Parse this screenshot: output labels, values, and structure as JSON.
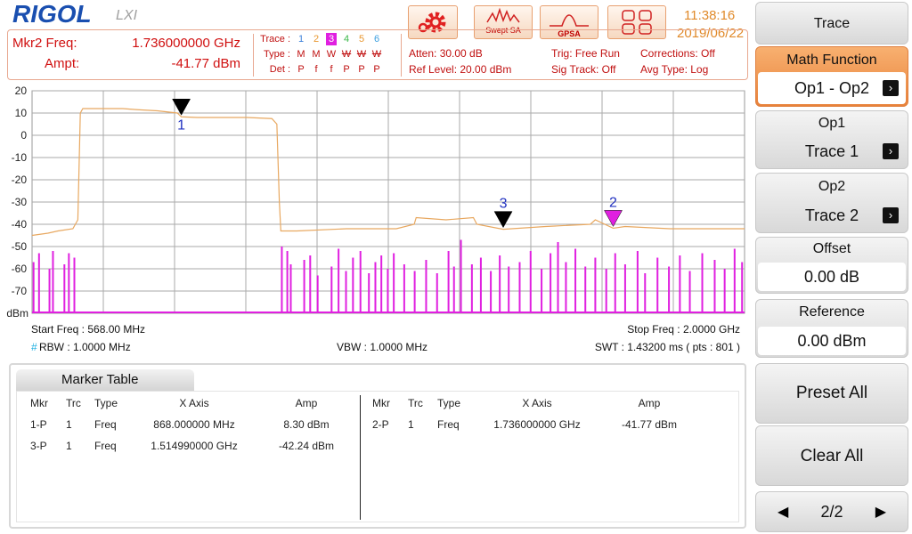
{
  "header": {
    "logo": "RIGOL",
    "lxi": "LXI",
    "buttons": [
      "Swept SA",
      "GPSA"
    ],
    "time": "11:38:16",
    "date": "2019/06/22"
  },
  "readout": {
    "freq_label": "Mkr2 Freq:",
    "freq": "1.736000000 GHz",
    "ampt_label": "Ampt:",
    "ampt": "-41.77 dBm"
  },
  "trace_info": {
    "trace_label": "Trace :",
    "type_label": "Type :",
    "det_label": "Det :",
    "traces": [
      {
        "number": "1",
        "color": "#3b7fd9",
        "type": "M",
        "det": "P",
        "struck": false,
        "active": false
      },
      {
        "number": "2",
        "color": "#e8962e",
        "type": "M",
        "det": "f",
        "struck": false,
        "active": false
      },
      {
        "number": "3",
        "color": "#ffffff",
        "type": "W",
        "det": "f",
        "struck": false,
        "active": true
      },
      {
        "number": "4",
        "color": "#3cb94a",
        "type": "W",
        "det": "P",
        "struck": true,
        "active": false
      },
      {
        "number": "5",
        "color": "#e8962e",
        "type": "W",
        "det": "P",
        "struck": true,
        "active": false
      },
      {
        "number": "6",
        "color": "#3b9fe0",
        "type": "W",
        "det": "P",
        "struck": true,
        "active": false
      }
    ]
  },
  "settings": [
    "Atten: 30.00 dB",
    "Ref Level: 20.00 dBm",
    "Trig: Free Run",
    "Sig Track: Off",
    "Corrections: Off",
    "Avg Type: Log"
  ],
  "chart_data": {
    "type": "line",
    "y_unit": "dBm",
    "xlim": [
      568,
      2000
    ],
    "ylim": [
      -80,
      20
    ],
    "yticks": [
      20,
      10,
      0,
      -10,
      -20,
      -30,
      -40,
      -50,
      -60,
      -70
    ],
    "grid": true,
    "series": [
      {
        "name": "Trace 2",
        "color": "#e8a860",
        "x": [
          568,
          600,
          620,
          650,
          660,
          665,
          670,
          700,
          750,
          780,
          820,
          860,
          868,
          900,
          1000,
          1050,
          1060,
          1065,
          1068,
          1100,
          1200,
          1300,
          1336,
          1340,
          1400,
          1455,
          1462,
          1515,
          1600,
          1690,
          1700,
          1736,
          1760,
          1850,
          2000
        ],
        "values": [
          -45,
          -44,
          -43,
          -42,
          -38,
          10,
          12,
          12,
          12,
          11.5,
          11,
          10,
          8.3,
          8,
          8,
          7.5,
          5,
          -30,
          -43,
          -43,
          -42,
          -42,
          -40,
          -37,
          -38,
          -37,
          -40,
          -42.24,
          -41,
          -40,
          -38,
          -41.77,
          -41,
          -42,
          -42
        ]
      },
      {
        "name": "Trace 3",
        "color": "#e020e0",
        "x": [
          571,
          582,
          603,
          610,
          633,
          642,
          653,
          1070,
          1081,
          1088,
          1115,
          1127,
          1142,
          1170,
          1184,
          1199,
          1213,
          1228,
          1245,
          1258,
          1270,
          1283,
          1295,
          1316,
          1337,
          1360,
          1382,
          1405,
          1416,
          1430,
          1452,
          1470,
          1490,
          1508,
          1526,
          1548,
          1570,
          1592,
          1610,
          1625,
          1641,
          1660,
          1680,
          1700,
          1722,
          1740,
          1760,
          1785,
          1800,
          1825,
          1848,
          1870,
          1890,
          1915,
          1940,
          1960,
          1980,
          1995
        ],
        "values": [
          -57,
          -53,
          -60,
          -52,
          -58,
          -53,
          -55,
          -50,
          -52,
          -58,
          -56,
          -54,
          -63,
          -59,
          -51,
          -61,
          -55,
          -52,
          -62,
          -57,
          -54,
          -60,
          -53,
          -58,
          -61,
          -56,
          -62,
          -52,
          -59,
          -47,
          -58,
          -55,
          -61,
          -54,
          -59,
          -57,
          -52,
          -60,
          -53,
          -48,
          -57,
          -51,
          -59,
          -55,
          -60,
          -53,
          -58,
          -52,
          -62,
          -55,
          -59,
          -54,
          -61,
          -53,
          -56,
          -60,
          -51,
          -57
        ]
      }
    ],
    "markers": [
      {
        "label": "1",
        "x": 868,
        "value": 8.3,
        "color": "#000000"
      },
      {
        "label": "2",
        "x": 1736,
        "value": -41.77,
        "color": "#e020e0"
      },
      {
        "label": "3",
        "x": 1514.99,
        "value": -42.24,
        "color": "#000000"
      }
    ]
  },
  "footer": {
    "start": "Start Freq : 568.00 MHz",
    "stop": "Stop Freq : 2.0000 GHz",
    "rbw_flag": "#",
    "rbw": "RBW : 1.0000 MHz",
    "vbw": "VBW : 1.0000 MHz",
    "swt": "SWT : 1.43200 ms ( pts : 801 )"
  },
  "marker_table": {
    "title": "Marker Table",
    "headers": [
      "Mkr",
      "Trc",
      "Type",
      "X Axis",
      "Amp"
    ],
    "left_rows": [
      [
        "1-P",
        "1",
        "Freq",
        "868.000000 MHz",
        "8.30 dBm"
      ],
      [
        "3-P",
        "1",
        "Freq",
        "1.514990000 GHz",
        "-42.24 dBm"
      ]
    ],
    "right_rows": [
      [
        "2-P",
        "1",
        "Freq",
        "1.736000000 GHz",
        "-41.77 dBm"
      ]
    ]
  },
  "softkeys": {
    "menu": "Trace",
    "math_label": "Math Function",
    "math_value": "Op1 - Op2",
    "op1_label": "Op1",
    "op1_value": "Trace 1",
    "op2_label": "Op2",
    "op2_value": "Trace 2",
    "offset_label": "Offset",
    "offset_value": "0.00 dB",
    "reference_label": "Reference",
    "reference_value": "0.00 dBm",
    "preset": "Preset All",
    "clear": "Clear All",
    "page": "2/2"
  }
}
